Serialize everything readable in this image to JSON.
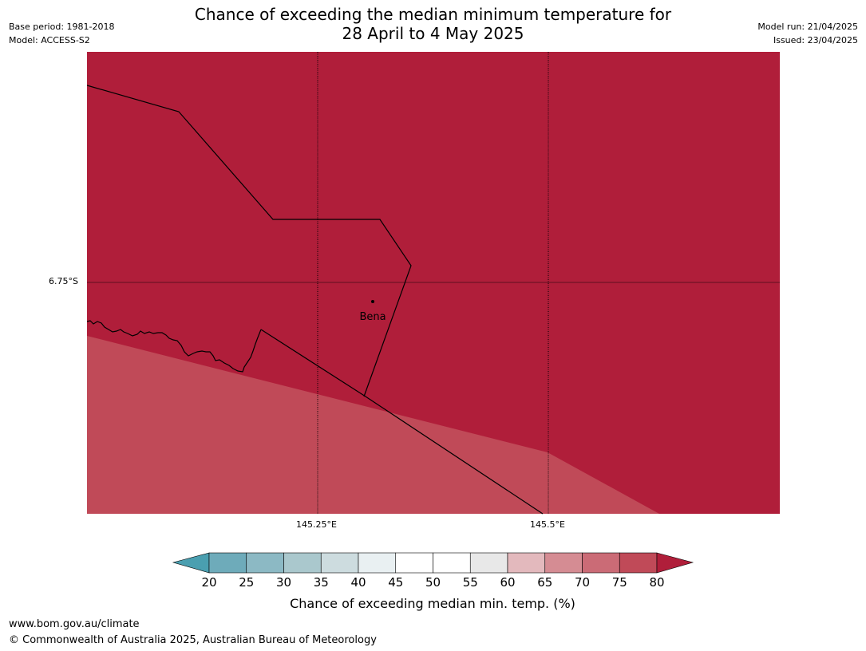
{
  "header": {
    "title_line1": "Chance of exceeding the median minimum temperature for",
    "title_line2": "28 April to 4 May 2025",
    "base_period": "Base period: 1981-2018",
    "model": "Model: ACCESS-S2",
    "model_run": "Model run: 21/04/2025",
    "issued": "Issued: 23/04/2025"
  },
  "map": {
    "place_label": "Bena",
    "lat_tick": "6.75°S",
    "lon_ticks": [
      "145.25°E",
      "145.5°E"
    ],
    "colors": {
      "band_80_plus": "#b01e3a",
      "band_75_80": "#c04a58"
    }
  },
  "colorbar": {
    "ticks": [
      "20",
      "25",
      "30",
      "35",
      "40",
      "45",
      "50",
      "55",
      "60",
      "65",
      "70",
      "75",
      "80"
    ],
    "colors": [
      "#4a9fb0",
      "#6eabba",
      "#8cb9c4",
      "#aac8cd",
      "#cddcdf",
      "#e9f0f2",
      "#ffffff",
      "#ffffff",
      "#e8e8e8",
      "#e3b9bd",
      "#d58c93",
      "#cb6b76",
      "#c04a58",
      "#b01e3a"
    ],
    "label": "Chance of exceeding median min. temp. (%)"
  },
  "footer": {
    "url": "www.bom.gov.au/climate",
    "copyright": "© Commonwealth of Australia 2025, Australian Bureau of Meteorology"
  }
}
